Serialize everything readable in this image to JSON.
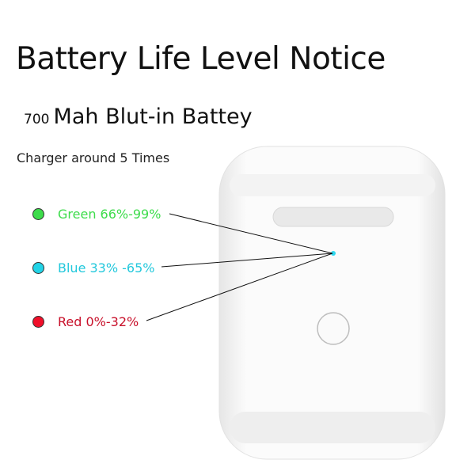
{
  "title": "Battery Life Level Notice",
  "capacity": {
    "number": "700",
    "text": "Mah Blut-in Battey"
  },
  "charge_note": "Charger around 5 Times",
  "levels": [
    {
      "label": "Green 66%-99%",
      "color": "#3ddc4b"
    },
    {
      "label": "Blue 33% -65%",
      "color": "#22d3e6"
    },
    {
      "label": "Red 0%-32%",
      "color": "#e0102a"
    }
  ],
  "indicator_color": "#2fd8ef"
}
